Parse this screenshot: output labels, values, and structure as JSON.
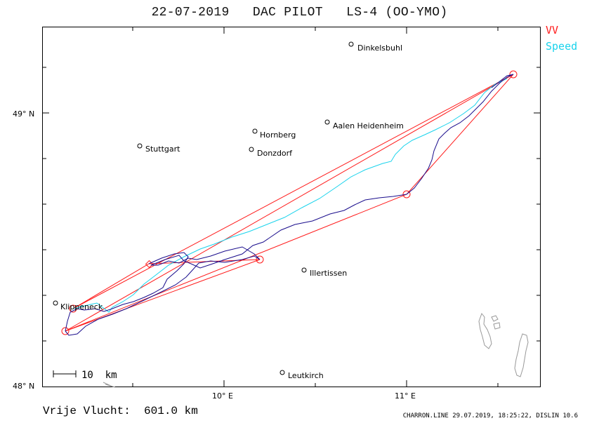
{
  "header": {
    "title": "22-07-2019   DAC PILOT   LS-4 (OO-YMO)"
  },
  "legend": {
    "vv_label": "VV",
    "speed_label": "Speed",
    "vv_color": "#ff1a1a",
    "speed_color": "#19d3ec",
    "track_color": "#1a0d8c"
  },
  "axes": {
    "lat_ticks": [
      "49° N",
      "48° N"
    ],
    "lon_ticks": [
      "10° E",
      "11° E"
    ]
  },
  "places": [
    {
      "name": "Dinkelsbuhl"
    },
    {
      "name": "Hornberg"
    },
    {
      "name": "Aalen Heidenheim"
    },
    {
      "name": "Stuttgart"
    },
    {
      "name": "Donzdorf"
    },
    {
      "name": "Illertissen"
    },
    {
      "name": "Klippeneck"
    },
    {
      "name": "Leutkirch"
    }
  ],
  "scale": {
    "label": "10  km"
  },
  "footer": {
    "distance": "Vrije Vlucht:  601.0 km",
    "source": "CHARRON.LINE 29.07.2019, 18:25:22, DISLIN 10.6"
  }
}
